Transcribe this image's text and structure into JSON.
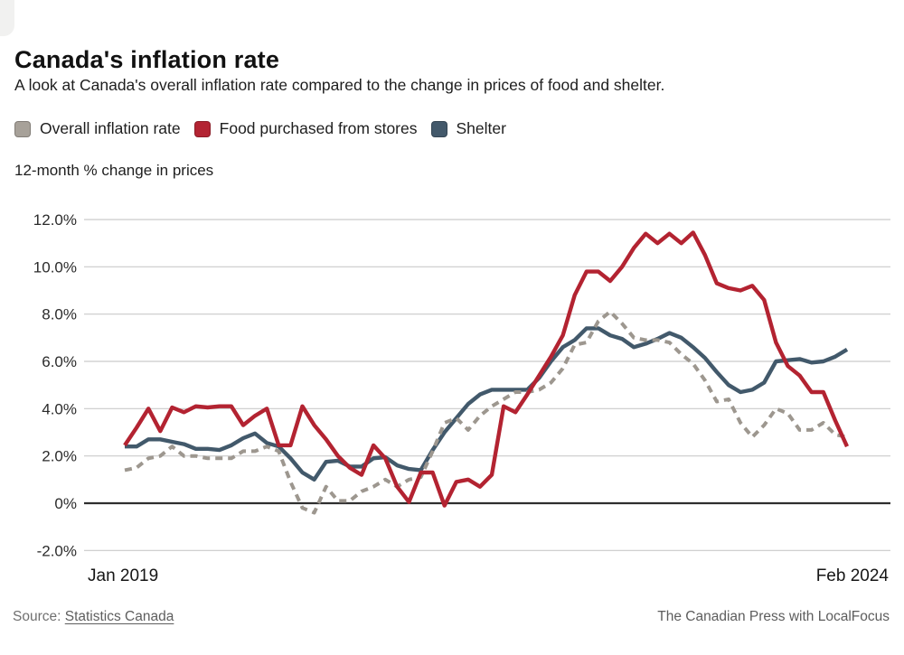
{
  "header": {
    "title": "Canada's inflation rate",
    "subtitle": "A look at Canada's overall inflation rate compared to the change in prices of food and shelter."
  },
  "legend": {
    "items": [
      {
        "label": "Overall inflation rate",
        "color": "#a7a199"
      },
      {
        "label": "Food purchased from stores",
        "color": "#b32433"
      },
      {
        "label": "Shelter",
        "color": "#43596b"
      }
    ]
  },
  "axis_note": "12-month % change in prices",
  "x_axis": {
    "start_label": "Jan 2019",
    "end_label": "Feb 2024"
  },
  "footer": {
    "source_label": "Source:",
    "source_link": "Statistics Canada",
    "credit": "The Canadian Press with LocalFocus"
  },
  "colors": {
    "overall_line": "#9d978f",
    "food_line": "#b32331",
    "shelter_line": "#42596b",
    "gridline": "#c9c9c9",
    "zero_line": "#2e2e2e"
  },
  "chart_data": {
    "type": "line",
    "title": "Canada's inflation rate",
    "ylabel": "12-month % change in prices",
    "x_unit": "month",
    "x_range": [
      "Jan 2019",
      "Feb 2024"
    ],
    "points_per_series": 62,
    "y_ticks": [
      "12.0%",
      "10.0%",
      "8.0%",
      "6.0%",
      "4.0%",
      "2.0%",
      "0%",
      "-2.0%"
    ],
    "y_tick_values": [
      12,
      10,
      8,
      6,
      4,
      2,
      0,
      -2
    ],
    "ylim": [
      -2.8,
      13.1
    ],
    "grid": "horizontal-only",
    "legend_position": "top",
    "series": [
      {
        "id": "overall",
        "name": "Overall inflation rate",
        "color": "#9d978f",
        "style": "dashed",
        "width": 4,
        "values": [
          1.4,
          1.5,
          1.9,
          2.0,
          2.4,
          2.0,
          2.0,
          1.9,
          1.9,
          1.9,
          2.2,
          2.2,
          2.4,
          2.2,
          0.9,
          -0.2,
          -0.4,
          0.7,
          0.1,
          0.1,
          0.5,
          0.7,
          1.0,
          0.7,
          1.0,
          1.1,
          2.2,
          3.4,
          3.6,
          3.1,
          3.7,
          4.1,
          4.4,
          4.7,
          4.7,
          4.8,
          5.1,
          5.7,
          6.7,
          6.8,
          7.7,
          8.1,
          7.6,
          7.0,
          6.9,
          6.9,
          6.8,
          6.3,
          5.9,
          5.2,
          4.3,
          4.4,
          3.4,
          2.8,
          3.3,
          4.0,
          3.8,
          3.1,
          3.1,
          3.4,
          2.9,
          2.8
        ]
      },
      {
        "id": "food",
        "name": "Food purchased from stores",
        "color": "#b32331",
        "style": "solid",
        "width": 4.4,
        "values": [
          2.45,
          3.2,
          4.0,
          3.05,
          4.05,
          3.85,
          4.1,
          4.05,
          4.1,
          4.1,
          3.3,
          3.7,
          4.0,
          2.45,
          2.45,
          4.1,
          3.3,
          2.7,
          2.0,
          1.5,
          1.2,
          2.45,
          1.9,
          0.7,
          0.05,
          1.3,
          1.3,
          -0.1,
          0.9,
          1.0,
          0.7,
          1.2,
          4.1,
          3.85,
          4.6,
          5.4,
          6.2,
          7.1,
          8.8,
          9.8,
          9.8,
          9.4,
          10.0,
          10.8,
          11.4,
          11.0,
          11.4,
          11.0,
          11.45,
          10.5,
          9.3,
          9.1,
          9.0,
          9.2,
          8.6,
          6.8,
          5.8,
          5.4,
          4.7,
          4.7,
          3.5,
          2.4
        ]
      },
      {
        "id": "shelter",
        "name": "Shelter",
        "color": "#42596b",
        "style": "solid",
        "width": 4.4,
        "values": [
          2.4,
          2.4,
          2.7,
          2.7,
          2.6,
          2.5,
          2.3,
          2.3,
          2.25,
          2.45,
          2.75,
          2.95,
          2.55,
          2.4,
          1.9,
          1.3,
          1.0,
          1.75,
          1.8,
          1.55,
          1.55,
          1.9,
          1.95,
          1.6,
          1.45,
          1.4,
          2.25,
          3.0,
          3.6,
          4.2,
          4.6,
          4.8,
          4.8,
          4.8,
          4.8,
          5.3,
          6.0,
          6.6,
          6.9,
          7.4,
          7.4,
          7.1,
          6.95,
          6.6,
          6.75,
          6.95,
          7.2,
          7.0,
          6.6,
          6.15,
          5.55,
          5.0,
          4.7,
          4.8,
          5.1,
          6.0,
          6.05,
          6.1,
          5.95,
          6.0,
          6.2,
          6.5
        ]
      }
    ]
  }
}
